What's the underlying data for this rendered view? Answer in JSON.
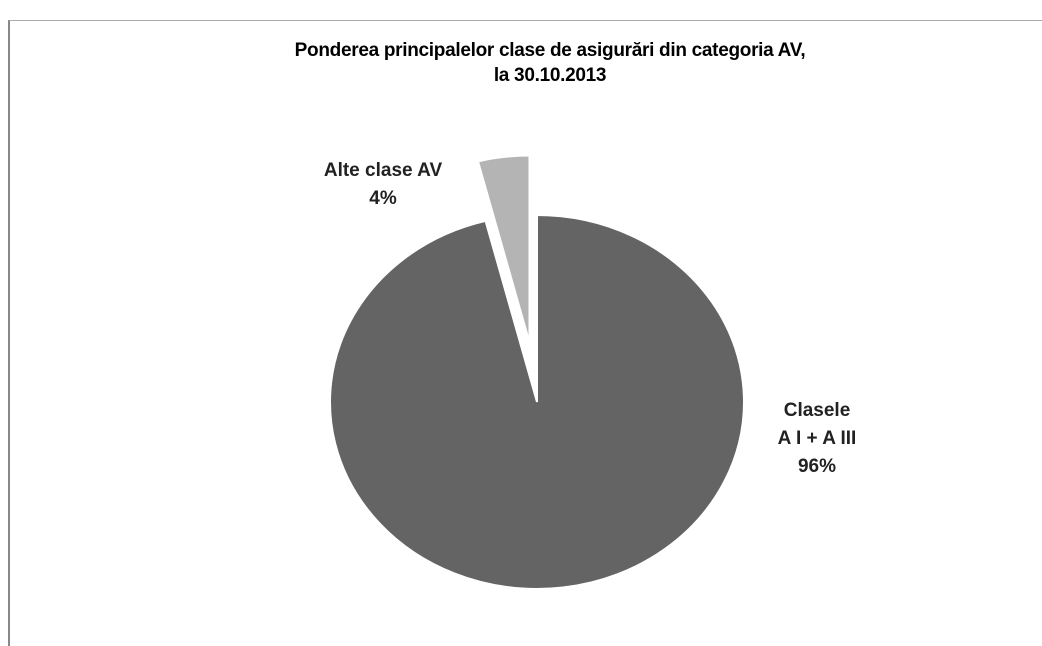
{
  "chart_data": {
    "type": "pie",
    "title": "Ponderea principalelor clase de asigurări  din categoria AV,\nla 30.10.2013",
    "categories": [
      "Clasele\nA I + A III",
      "Alte clase AV"
    ],
    "values": [
      96,
      4
    ],
    "value_labels": [
      "96%",
      "4%"
    ],
    "colors": [
      "#646464",
      "#b4b4b4"
    ]
  }
}
